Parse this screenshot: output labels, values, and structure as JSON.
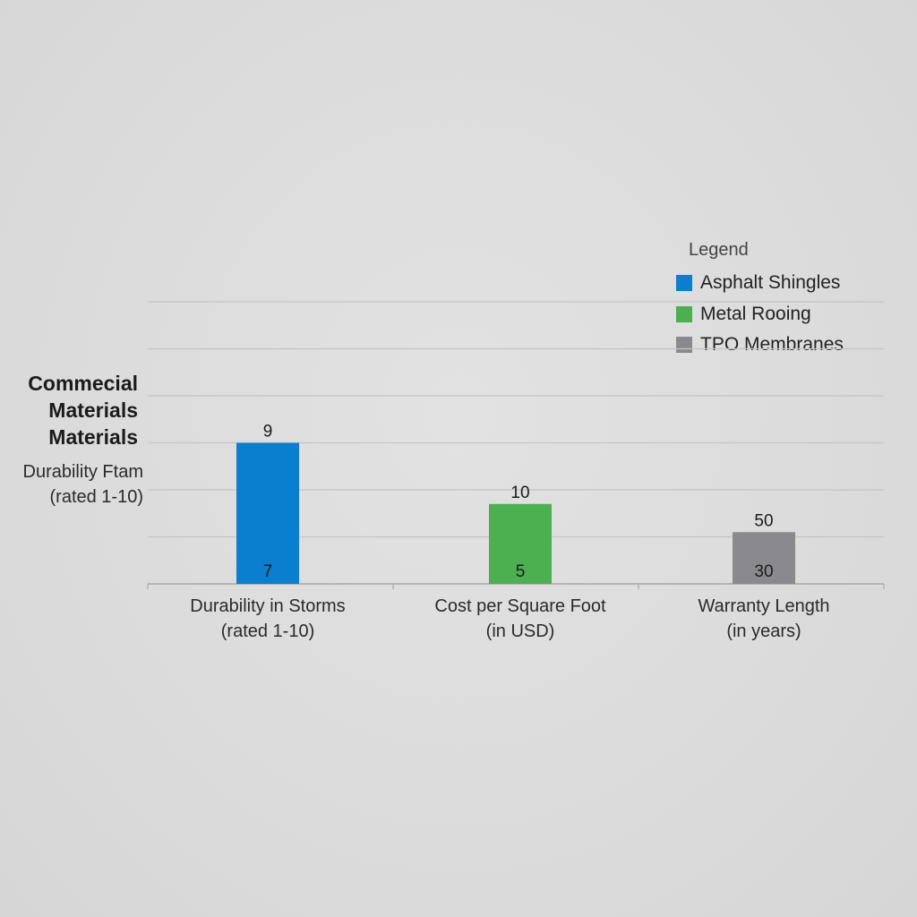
{
  "chart_data": {
    "type": "bar",
    "title_lines": [
      "Commecial",
      "Materials",
      "Materials"
    ],
    "ylabel_lines": [
      "Durability Ftam",
      "(rated 1-10)"
    ],
    "legend": {
      "title": "Legend",
      "placement": "top-right",
      "items": [
        {
          "name": "Asphalt Shingles",
          "color": "#0a7fcf"
        },
        {
          "name": "Metal Rooing",
          "color": "#4caf50"
        },
        {
          "name": "TPO Membranes",
          "color": "#8a8a8e"
        }
      ]
    },
    "grid": true,
    "ylim": [
      0,
      6
    ],
    "categories": [
      {
        "lines": [
          "Durability in Storms",
          "(rated 1-10)"
        ],
        "color": "#0a7fcf",
        "value": 3,
        "top_label": "9",
        "bottom_label": "7"
      },
      {
        "lines": [
          "Cost per Square Foot",
          "(in USD)"
        ],
        "color": "#4caf50",
        "value": 1.7,
        "top_label": "10",
        "bottom_label": "5"
      },
      {
        "lines": [
          "Warranty Length",
          "(in years)"
        ],
        "color": "#8a8a8e",
        "value": 1.1,
        "top_label": "50",
        "bottom_label": "30"
      }
    ]
  }
}
